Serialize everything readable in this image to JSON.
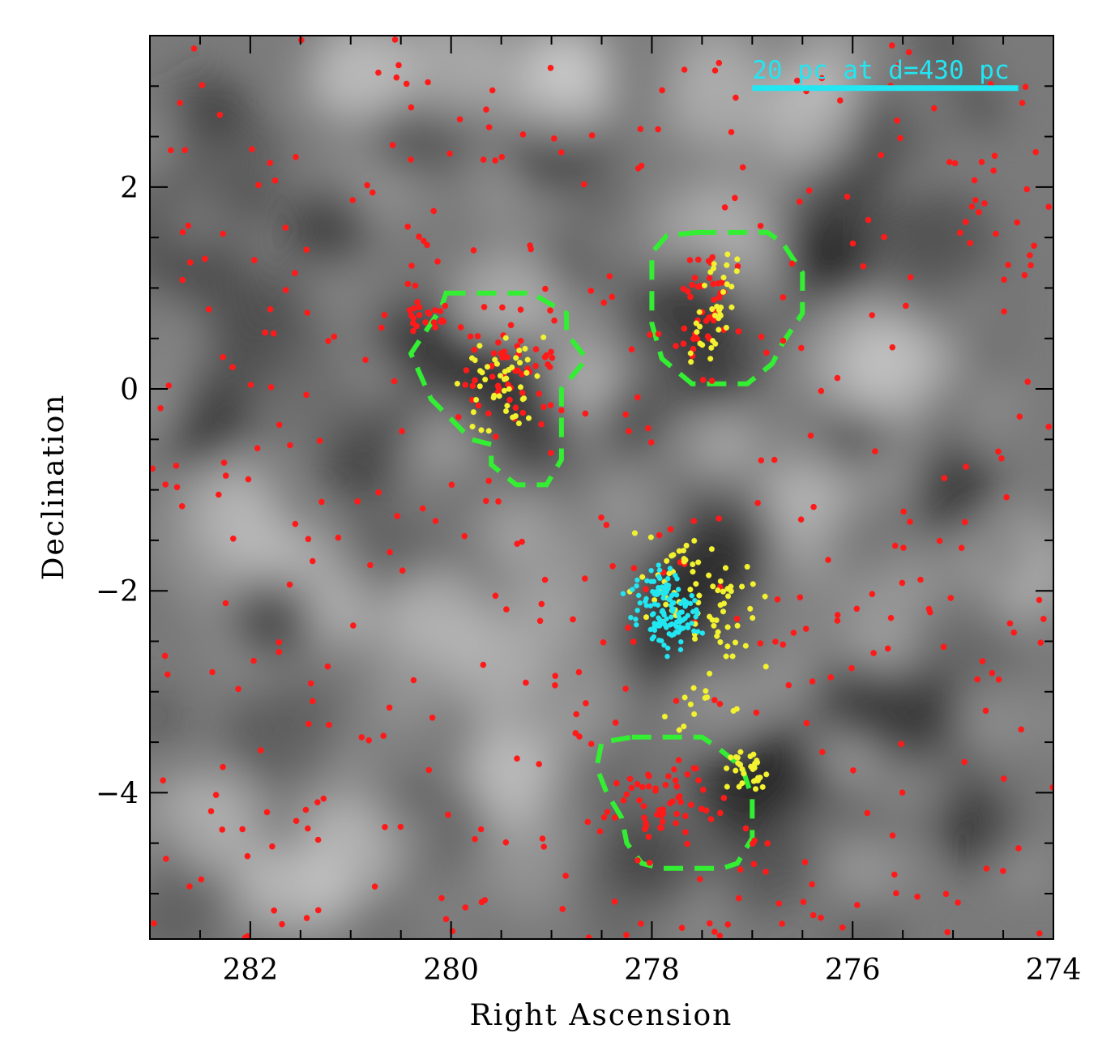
{
  "chart_data": {
    "type": "scatter",
    "xlabel": "Right Ascension",
    "ylabel": "Declination",
    "xlim": [
      283.0,
      274.0
    ],
    "ylim": [
      -5.45,
      3.5
    ],
    "x_ticks": [
      282,
      280,
      278,
      276,
      274
    ],
    "x_tick_labels": [
      "282",
      "280",
      "278",
      "276",
      "274"
    ],
    "y_ticks": [
      2,
      0,
      -2,
      -4
    ],
    "y_tick_labels": [
      "2",
      "0",
      "−2",
      "−4"
    ],
    "x_minor_step": 0.5,
    "y_minor_step": 0.5,
    "grid": false,
    "background": "grayscale extinction map",
    "scale_bar": {
      "label": "20 pc at d=430 pc",
      "x_start": 277.0,
      "x_end": 274.35,
      "y": 2.98,
      "color": "#22e6f2"
    },
    "colors": {
      "red_points": "#ff1a1a",
      "yellow_points": "#f2f230",
      "cyan_points": "#22e6f2",
      "green_regions": "#33ee33"
    },
    "regions": [
      {
        "name": "region-1",
        "ra": [
          280.05,
          279.2,
          278.85,
          278.85,
          278.65,
          278.9,
          278.9,
          279.05,
          279.35,
          279.6,
          279.6,
          279.8,
          280.2,
          280.4,
          280.1
        ],
        "dec": [
          0.95,
          0.95,
          0.75,
          0.55,
          0.3,
          0.0,
          -0.7,
          -0.95,
          -0.95,
          -0.75,
          -0.55,
          -0.5,
          -0.1,
          0.35,
          0.8
        ]
      },
      {
        "name": "region-2",
        "ra": [
          277.55,
          276.85,
          276.7,
          276.5,
          276.5,
          276.7,
          276.8,
          277.05,
          277.3,
          277.6,
          277.9,
          278.0,
          278.0,
          277.85
        ],
        "dec": [
          1.55,
          1.55,
          1.45,
          1.15,
          0.75,
          0.45,
          0.25,
          0.05,
          0.05,
          0.05,
          0.3,
          0.65,
          1.35,
          1.52
        ]
      },
      {
        "name": "region-3",
        "ra": [
          278.2,
          277.5,
          277.35,
          277.1,
          277.0,
          277.0,
          277.15,
          277.3,
          277.9,
          278.1,
          278.25,
          278.3,
          278.45,
          278.55,
          278.5
        ],
        "dec": [
          -3.45,
          -3.45,
          -3.55,
          -3.75,
          -4.05,
          -4.45,
          -4.7,
          -4.75,
          -4.75,
          -4.7,
          -4.5,
          -4.25,
          -4.0,
          -3.75,
          -3.5
        ]
      }
    ]
  }
}
